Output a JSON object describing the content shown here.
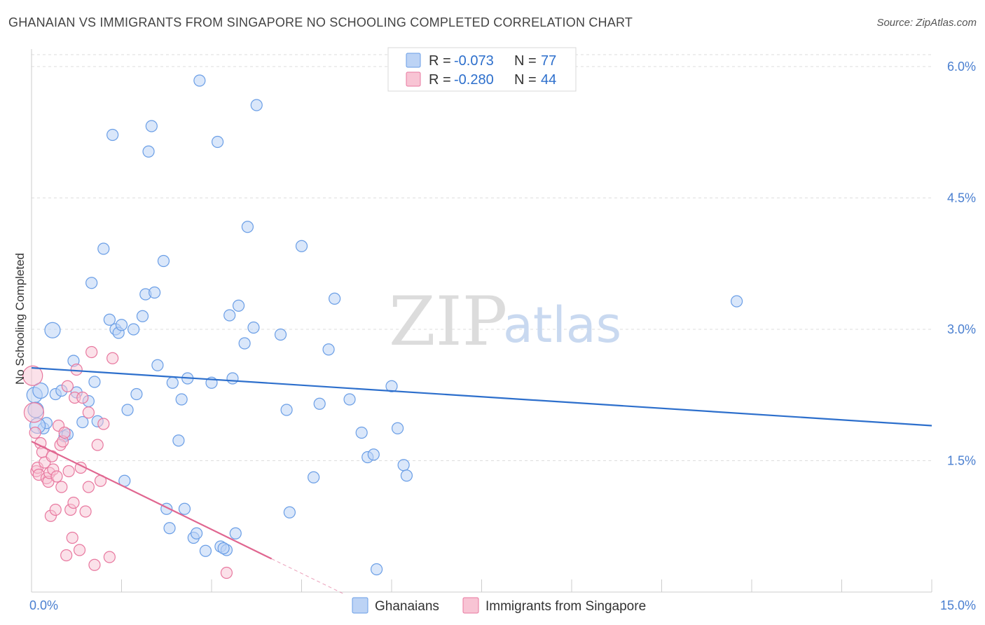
{
  "title": "GHANAIAN VS IMMIGRANTS FROM SINGAPORE NO SCHOOLING COMPLETED CORRELATION CHART",
  "source": "Source: ZipAtlas.com",
  "watermark": {
    "zip": "ZIP",
    "atlas": "atlas"
  },
  "colors": {
    "blue": "#6a9ee6",
    "blue_fill": "#bcd3f5",
    "blue_line": "#2d6fcc",
    "pink": "#e8789f",
    "pink_fill": "#f8c4d4",
    "pink_line": "#e06690",
    "grid": "#dddddd",
    "tick_label": "#4a7fd0"
  },
  "legend": {
    "row1": {
      "r_label": "R =",
      "r_value": "-0.073",
      "n_label": "N =",
      "n_value": "77"
    },
    "row2": {
      "r_label": "R =",
      "r_value": "-0.280",
      "n_label": "N =",
      "n_value": "44"
    }
  },
  "chart_data": {
    "type": "scatter",
    "title": "GHANAIAN VS IMMIGRANTS FROM SINGAPORE NO SCHOOLING COMPLETED CORRELATION CHART",
    "xlabel": "",
    "ylabel": "No Schooling Completed",
    "xlim": [
      0,
      15
    ],
    "ylim": [
      0,
      6.2
    ],
    "x_tick_labels": [
      "0.0%",
      "15.0%"
    ],
    "y_ticks": [
      1.5,
      3.0,
      4.5,
      6.0
    ],
    "y_tick_labels": [
      "1.5%",
      "3.0%",
      "4.5%",
      "6.0%"
    ],
    "grid": true,
    "series": [
      {
        "name": "Ghanaians",
        "color": "#6a9ee6",
        "trend": {
          "x": [
            0,
            15
          ],
          "y": [
            2.56,
            1.9
          ]
        },
        "points": [
          [
            0.05,
            2.25
          ],
          [
            0.07,
            2.08
          ],
          [
            0.2,
            1.87
          ],
          [
            0.25,
            1.93
          ],
          [
            0.35,
            2.99
          ],
          [
            0.4,
            2.26
          ],
          [
            0.5,
            2.3
          ],
          [
            0.55,
            1.78
          ],
          [
            0.6,
            1.8
          ],
          [
            0.7,
            2.64
          ],
          [
            0.75,
            2.28
          ],
          [
            0.85,
            1.94
          ],
          [
            0.95,
            2.18
          ],
          [
            1.0,
            3.53
          ],
          [
            1.05,
            2.4
          ],
          [
            1.1,
            1.95
          ],
          [
            1.2,
            3.92
          ],
          [
            1.3,
            3.11
          ],
          [
            1.35,
            5.22
          ],
          [
            1.4,
            3.0
          ],
          [
            1.45,
            2.96
          ],
          [
            1.5,
            3.05
          ],
          [
            1.55,
            1.27
          ],
          [
            1.6,
            2.08
          ],
          [
            1.7,
            3.0
          ],
          [
            1.75,
            2.26
          ],
          [
            1.85,
            3.15
          ],
          [
            1.9,
            3.4
          ],
          [
            1.95,
            5.03
          ],
          [
            2.0,
            5.32
          ],
          [
            2.05,
            3.42
          ],
          [
            2.1,
            2.59
          ],
          [
            2.2,
            3.78
          ],
          [
            2.25,
            0.95
          ],
          [
            2.3,
            0.73
          ],
          [
            2.35,
            2.39
          ],
          [
            2.45,
            1.73
          ],
          [
            2.5,
            2.2
          ],
          [
            2.55,
            0.95
          ],
          [
            2.6,
            2.44
          ],
          [
            2.7,
            0.62
          ],
          [
            2.75,
            0.67
          ],
          [
            2.8,
            5.84
          ],
          [
            2.9,
            0.47
          ],
          [
            3.0,
            2.39
          ],
          [
            3.1,
            5.14
          ],
          [
            3.15,
            0.52
          ],
          [
            3.25,
            0.48
          ],
          [
            3.3,
            3.16
          ],
          [
            3.35,
            2.44
          ],
          [
            3.4,
            0.67
          ],
          [
            3.45,
            3.27
          ],
          [
            3.55,
            2.84
          ],
          [
            3.6,
            4.17
          ],
          [
            3.7,
            3.02
          ],
          [
            3.75,
            5.56
          ],
          [
            4.15,
            2.94
          ],
          [
            4.25,
            2.08
          ],
          [
            4.3,
            0.91
          ],
          [
            4.5,
            3.95
          ],
          [
            4.7,
            1.31
          ],
          [
            4.8,
            2.15
          ],
          [
            4.95,
            2.77
          ],
          [
            5.05,
            3.35
          ],
          [
            5.3,
            2.2
          ],
          [
            5.5,
            1.82
          ],
          [
            5.6,
            1.54
          ],
          [
            5.7,
            1.57
          ],
          [
            5.75,
            0.26
          ],
          [
            6.0,
            2.35
          ],
          [
            6.1,
            1.87
          ],
          [
            6.2,
            1.45
          ],
          [
            6.25,
            1.33
          ],
          [
            11.75,
            3.32
          ],
          [
            0.1,
            1.9
          ],
          [
            0.15,
            2.3
          ],
          [
            3.2,
            0.5
          ]
        ]
      },
      {
        "name": "Immigrants from Singapore",
        "color": "#e8789f",
        "trend": {
          "x": [
            0,
            4.0
          ],
          "y": [
            1.72,
            0.38
          ]
        },
        "trend_dashed": {
          "x": [
            4.0,
            5.2
          ],
          "y": [
            0.38,
            -0.02
          ]
        },
        "points": [
          [
            0.02,
            2.47
          ],
          [
            0.04,
            2.05
          ],
          [
            0.06,
            1.82
          ],
          [
            0.08,
            1.38
          ],
          [
            0.1,
            1.42
          ],
          [
            0.12,
            1.34
          ],
          [
            0.15,
            1.7
          ],
          [
            0.18,
            1.6
          ],
          [
            0.22,
            1.48
          ],
          [
            0.25,
            1.3
          ],
          [
            0.28,
            1.26
          ],
          [
            0.3,
            1.36
          ],
          [
            0.32,
            0.87
          ],
          [
            0.34,
            1.55
          ],
          [
            0.36,
            1.4
          ],
          [
            0.4,
            0.94
          ],
          [
            0.42,
            1.32
          ],
          [
            0.45,
            1.9
          ],
          [
            0.48,
            1.68
          ],
          [
            0.5,
            1.2
          ],
          [
            0.52,
            1.72
          ],
          [
            0.55,
            1.82
          ],
          [
            0.58,
            0.42
          ],
          [
            0.6,
            2.35
          ],
          [
            0.62,
            1.38
          ],
          [
            0.65,
            0.94
          ],
          [
            0.68,
            0.62
          ],
          [
            0.7,
            1.02
          ],
          [
            0.72,
            2.22
          ],
          [
            0.75,
            2.54
          ],
          [
            0.8,
            0.48
          ],
          [
            0.82,
            1.42
          ],
          [
            0.85,
            2.22
          ],
          [
            0.9,
            0.92
          ],
          [
            0.95,
            1.2
          ],
          [
            1.0,
            2.74
          ],
          [
            1.05,
            0.31
          ],
          [
            1.1,
            1.68
          ],
          [
            1.15,
            1.27
          ],
          [
            1.2,
            1.92
          ],
          [
            1.3,
            0.4
          ],
          [
            1.35,
            2.67
          ],
          [
            3.25,
            0.22
          ],
          [
            0.95,
            2.05
          ]
        ]
      }
    ]
  },
  "bottom_legend": [
    {
      "label": "Ghanaians"
    },
    {
      "label": "Immigrants from Singapore"
    }
  ]
}
